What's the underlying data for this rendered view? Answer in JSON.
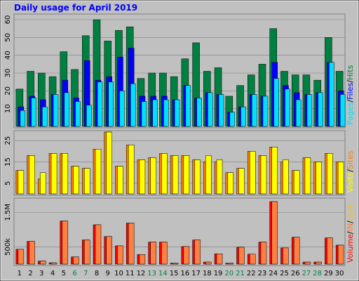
{
  "chart_data": [
    {
      "type": "bar",
      "title": "Daily usage for April 2019",
      "ylim": [
        0,
        60
      ],
      "yticks": [
        10,
        20,
        30,
        40,
        50,
        60
      ],
      "legend_separator": "/",
      "series": [
        {
          "name": "Hits",
          "color": "#008040",
          "values": [
            21,
            31,
            30,
            28,
            42,
            32,
            51,
            60,
            48,
            54,
            56,
            27,
            30,
            30,
            28,
            38,
            47,
            31,
            33,
            17,
            23,
            29,
            35,
            55,
            31,
            29,
            29,
            26,
            50,
            31
          ]
        },
        {
          "name": "Files",
          "color": "#0000ff",
          "values": [
            11,
            17,
            15,
            18,
            26,
            16,
            37,
            26,
            28,
            39,
            44,
            17,
            17,
            17,
            15,
            23,
            16,
            19,
            18,
            8,
            11,
            18,
            17,
            36,
            23,
            19,
            18,
            19,
            36,
            20
          ]
        },
        {
          "name": "Pages",
          "color": "#00e0ff",
          "values": [
            9,
            16,
            11,
            18,
            19,
            14,
            12,
            25,
            25,
            20,
            24,
            14,
            15,
            15,
            15,
            23,
            16,
            19,
            18,
            8,
            11,
            18,
            17,
            27,
            21,
            15,
            18,
            19,
            36,
            18
          ]
        }
      ]
    },
    {
      "type": "bar",
      "ylim": [
        0,
        29
      ],
      "yticks": [
        5,
        15,
        25
      ],
      "legend_separator": "/",
      "series": [
        {
          "name": "Sites",
          "color": "#ff8000",
          "values": [
            11,
            18,
            7,
            19,
            19,
            13,
            12,
            21,
            29,
            13,
            23,
            16,
            17,
            19,
            18,
            18,
            16,
            15,
            15,
            10,
            12,
            20,
            18,
            22,
            15,
            11,
            17,
            15,
            19,
            15
          ]
        },
        {
          "name": "Visits",
          "color": "#ffff00",
          "values": [
            11,
            18,
            10,
            19,
            19,
            13,
            12,
            21,
            29,
            13,
            23,
            16,
            17,
            19,
            18,
            18,
            16,
            18,
            16,
            10,
            12,
            20,
            18,
            22,
            16,
            11,
            17,
            15,
            19,
            15
          ]
        }
      ]
    },
    {
      "type": "bar",
      "ylim": [
        0,
        1810000
      ],
      "yticks": [
        {
          "value": 500000,
          "label": "500k"
        },
        {
          "value": 1500000,
          "label": "1.5M"
        }
      ],
      "legend_separator": "/",
      "legend_extra": {
        "text": "OUT",
        "color": "#ffc000"
      },
      "categories": [
        "1",
        "2",
        "3",
        "4",
        "5",
        "6",
        "7",
        "8",
        "9",
        "10",
        "11",
        "12",
        "13",
        "14",
        "15",
        "16",
        "17",
        "18",
        "19",
        "20",
        "21",
        "22",
        "23",
        "24",
        "25",
        "26",
        "27",
        "28",
        "29",
        "30"
      ],
      "category_colors": [
        "#000000",
        "#000000",
        "#000000",
        "#000000",
        "#000000",
        "#008040",
        "#008040",
        "#000000",
        "#000000",
        "#000000",
        "#000000",
        "#000000",
        "#008040",
        "#008040",
        "#000000",
        "#000000",
        "#000000",
        "#000000",
        "#000000",
        "#008040",
        "#008040",
        "#000000",
        "#000000",
        "#000000",
        "#000000",
        "#000000",
        "#008040",
        "#008040",
        "#000000",
        "#000000"
      ],
      "series": [
        {
          "name": "Volume",
          "color": "#ff0000",
          "values": [
            430000,
            660000,
            90000,
            40000,
            1250000,
            210000,
            700000,
            1140000,
            800000,
            530000,
            1190000,
            280000,
            640000,
            640000,
            30000,
            510000,
            700000,
            60000,
            300000,
            30000,
            490000,
            290000,
            640000,
            1810000,
            470000,
            780000,
            60000,
            60000,
            760000,
            550000
          ]
        },
        {
          "name": "IN",
          "color": "#ff8040",
          "values": [
            430000,
            660000,
            90000,
            40000,
            1250000,
            210000,
            700000,
            1140000,
            800000,
            530000,
            1190000,
            280000,
            640000,
            640000,
            30000,
            510000,
            700000,
            60000,
            300000,
            30000,
            490000,
            290000,
            640000,
            1810000,
            470000,
            780000,
            60000,
            60000,
            760000,
            550000
          ]
        }
      ]
    }
  ]
}
